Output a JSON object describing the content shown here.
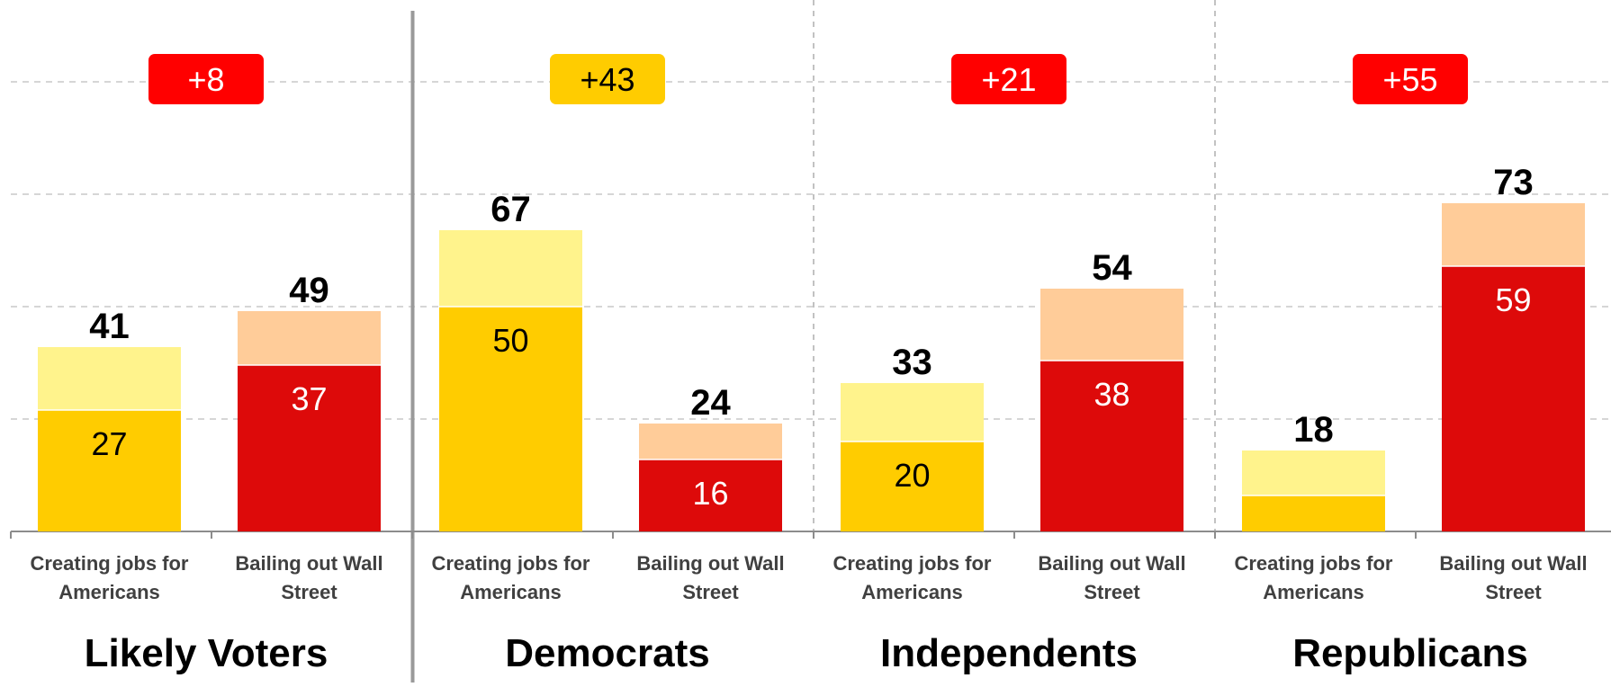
{
  "chart_data": {
    "type": "bar",
    "stacked": true,
    "ylim": [
      0,
      100
    ],
    "grid": true,
    "groups": [
      {
        "name": "Likely Voters",
        "badge": "+8",
        "badge_color": "#ff0000",
        "bars": [
          {
            "category_lines": [
              "Creating jobs for",
              "Americans"
            ],
            "total": 41,
            "inner": 27,
            "inner_label": "27",
            "inner_color": "#ffcc00",
            "outer_color": "#fff38c",
            "label_color": "#000000"
          },
          {
            "category_lines": [
              "Bailing out Wall",
              "Street"
            ],
            "total": 49,
            "inner": 37,
            "inner_label": "37",
            "inner_color": "#dd0a0a",
            "outer_color": "#ffcc99",
            "label_color": "#ffffff"
          }
        ]
      },
      {
        "name": "Democrats",
        "badge": "+43",
        "badge_color": "#ffcc00",
        "bars": [
          {
            "category_lines": [
              "Creating jobs for",
              "Americans"
            ],
            "total": 67,
            "inner": 50,
            "inner_label": "50",
            "inner_color": "#ffcc00",
            "outer_color": "#fff38c",
            "label_color": "#000000"
          },
          {
            "category_lines": [
              "Bailing out Wall",
              "Street"
            ],
            "total": 24,
            "inner": 16,
            "inner_label": "16",
            "inner_color": "#dd0a0a",
            "outer_color": "#ffcc99",
            "label_color": "#ffffff"
          }
        ]
      },
      {
        "name": "Independents",
        "badge": "+21",
        "badge_color": "#ff0000",
        "bars": [
          {
            "category_lines": [
              "Creating jobs for",
              "Americans"
            ],
            "total": 33,
            "inner": 20,
            "inner_label": "20",
            "inner_color": "#ffcc00",
            "outer_color": "#fff38c",
            "label_color": "#000000"
          },
          {
            "category_lines": [
              "Bailing out Wall",
              "Street"
            ],
            "total": 54,
            "inner": 38,
            "inner_label": "38",
            "inner_color": "#dd0a0a",
            "outer_color": "#ffcc99",
            "label_color": "#ffffff"
          }
        ]
      },
      {
        "name": "Republicans",
        "badge": "+55",
        "badge_color": "#ff0000",
        "bars": [
          {
            "category_lines": [
              "Creating jobs for",
              "Americans"
            ],
            "total": 18,
            "inner": 8,
            "inner_label": "",
            "inner_color": "#ffcc00",
            "outer_color": "#fff38c",
            "label_color": "#000000"
          },
          {
            "category_lines": [
              "Bailing out Wall",
              "Street"
            ],
            "total": 73,
            "inner": 59,
            "inner_label": "59",
            "inner_color": "#dd0a0a",
            "outer_color": "#ffcc99",
            "label_color": "#ffffff"
          }
        ]
      }
    ]
  }
}
